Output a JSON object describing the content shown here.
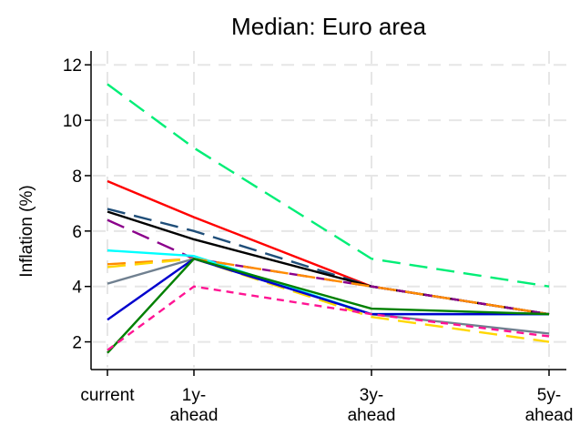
{
  "chart_data": {
    "type": "line",
    "title": "Median: Euro area",
    "ylabel": "Inflation (%)",
    "xlabel": "",
    "categories": [
      [
        "current"
      ],
      [
        "1y-",
        "ahead"
      ],
      [
        "3y-",
        "ahead"
      ],
      [
        "5y-",
        "ahead"
      ]
    ],
    "x": [
      0,
      1,
      3,
      5
    ],
    "ylim": [
      1.0,
      12.5
    ],
    "yticks": [
      2,
      4,
      6,
      8,
      10,
      12
    ],
    "grid": true,
    "series": [
      {
        "color": "#00ee76",
        "dash": "long-dash",
        "values": [
          11.3,
          9.0,
          5.0,
          4.0
        ]
      },
      {
        "color": "#ff0000",
        "dash": "solid",
        "values": [
          7.8,
          6.5,
          4.0,
          3.0
        ]
      },
      {
        "color": "#1f4e79",
        "dash": "long-dash",
        "values": [
          6.8,
          6.0,
          4.0,
          3.0
        ]
      },
      {
        "color": "#000000",
        "dash": "solid",
        "values": [
          6.7,
          5.7,
          4.0,
          3.0
        ]
      },
      {
        "color": "#8b008b",
        "dash": "long-dash",
        "values": [
          6.4,
          5.0,
          4.0,
          3.0
        ]
      },
      {
        "color": "#00ffff",
        "dash": "solid",
        "values": [
          5.3,
          5.1,
          3.0,
          3.0
        ]
      },
      {
        "color": "#ff8c00",
        "dash": "long-dash",
        "values": [
          4.8,
          5.0,
          4.0,
          3.0
        ]
      },
      {
        "color": "#ffd700",
        "dash": "long-dash",
        "values": [
          4.7,
          5.0,
          2.9,
          2.0
        ]
      },
      {
        "color": "#708090",
        "dash": "solid",
        "values": [
          4.1,
          5.0,
          3.0,
          2.3
        ]
      },
      {
        "color": "#0000cd",
        "dash": "solid",
        "values": [
          2.8,
          5.0,
          3.0,
          3.0
        ]
      },
      {
        "color": "#008000",
        "dash": "solid",
        "values": [
          1.6,
          5.0,
          3.2,
          3.0
        ]
      },
      {
        "color": "#ff1493",
        "dash": "short-dash",
        "values": [
          1.7,
          4.0,
          3.0,
          2.2
        ]
      }
    ]
  }
}
